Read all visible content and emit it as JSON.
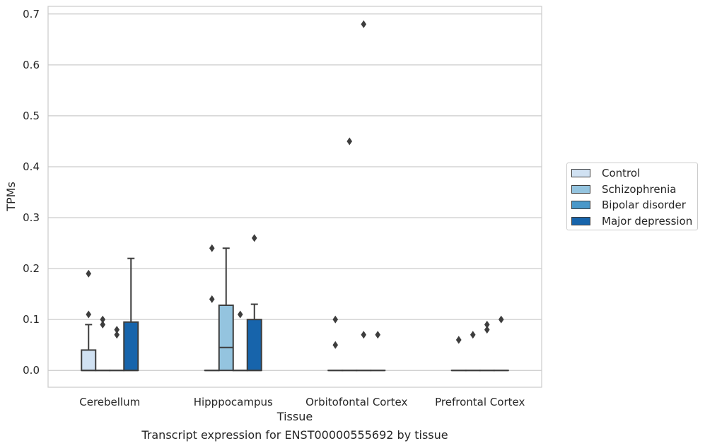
{
  "caption": "Transcript expression for ENST00000555692 by tissue",
  "chart_data": {
    "type": "box",
    "xlabel": "Tissue",
    "ylabel": "TPMs",
    "ylim": [
      -0.033,
      0.715
    ],
    "yticks": [
      0.0,
      0.1,
      0.2,
      0.3,
      0.4,
      0.5,
      0.6,
      0.7
    ],
    "ytick_labels": [
      "0.0",
      "0.1",
      "0.2",
      "0.3",
      "0.4",
      "0.5",
      "0.6",
      "0.7"
    ],
    "grid": true,
    "legend_position": "outside-right",
    "categories": [
      "Cerebellum",
      "Hipppocampus",
      "Orbitofontal Cortex",
      "Prefrontal Cortex"
    ],
    "series": [
      {
        "name": "Control",
        "color": "#d0e1f2",
        "boxes": [
          {
            "q1": 0.0,
            "median": 0.0,
            "q3": 0.04,
            "whisker_low": 0.0,
            "whisker_high": 0.09,
            "outliers": [
              0.11,
              0.19
            ]
          },
          {
            "q1": 0.0,
            "median": 0.0,
            "q3": 0.0,
            "whisker_low": 0.0,
            "whisker_high": 0.0,
            "outliers": [
              0.14,
              0.24
            ]
          },
          {
            "q1": 0.0,
            "median": 0.0,
            "q3": 0.0,
            "whisker_low": 0.0,
            "whisker_high": 0.0,
            "outliers": [
              0.05,
              0.1
            ]
          },
          {
            "q1": 0.0,
            "median": 0.0,
            "q3": 0.0,
            "whisker_low": 0.0,
            "whisker_high": 0.0,
            "outliers": [
              0.06,
              0.06
            ]
          }
        ]
      },
      {
        "name": "Schizophrenia",
        "color": "#94c4df",
        "boxes": [
          {
            "q1": 0.0,
            "median": 0.0,
            "q3": 0.0,
            "whisker_low": 0.0,
            "whisker_high": 0.0,
            "outliers": [
              0.09,
              0.1
            ]
          },
          {
            "q1": 0.0,
            "median": 0.045,
            "q3": 0.128,
            "whisker_low": 0.0,
            "whisker_high": 0.24,
            "outliers": []
          },
          {
            "q1": 0.0,
            "median": 0.0,
            "q3": 0.0,
            "whisker_low": 0.0,
            "whisker_high": 0.0,
            "outliers": [
              0.45
            ]
          },
          {
            "q1": 0.0,
            "median": 0.0,
            "q3": 0.0,
            "whisker_low": 0.0,
            "whisker_high": 0.0,
            "outliers": [
              0.07
            ]
          }
        ]
      },
      {
        "name": "Bipolar disorder",
        "color": "#4a98c9",
        "boxes": [
          {
            "q1": 0.0,
            "median": 0.0,
            "q3": 0.0,
            "whisker_low": 0.0,
            "whisker_high": 0.0,
            "outliers": [
              0.07,
              0.08
            ]
          },
          {
            "q1": 0.0,
            "median": 0.0,
            "q3": 0.0,
            "whisker_low": 0.0,
            "whisker_high": 0.0,
            "outliers": [
              0.11
            ]
          },
          {
            "q1": 0.0,
            "median": 0.0,
            "q3": 0.0,
            "whisker_low": 0.0,
            "whisker_high": 0.0,
            "outliers": [
              0.07,
              0.68
            ]
          },
          {
            "q1": 0.0,
            "median": 0.0,
            "q3": 0.0,
            "whisker_low": 0.0,
            "whisker_high": 0.0,
            "outliers": [
              0.08,
              0.09
            ]
          }
        ]
      },
      {
        "name": "Major depression",
        "color": "#1764ab",
        "boxes": [
          {
            "q1": 0.0,
            "median": 0.0,
            "q3": 0.095,
            "whisker_low": 0.0,
            "whisker_high": 0.22,
            "outliers": []
          },
          {
            "q1": 0.0,
            "median": 0.0,
            "q3": 0.1,
            "whisker_low": 0.0,
            "whisker_high": 0.13,
            "outliers": [
              0.26
            ]
          },
          {
            "q1": 0.0,
            "median": 0.0,
            "q3": 0.0,
            "whisker_low": 0.0,
            "whisker_high": 0.0,
            "outliers": [
              0.07
            ]
          },
          {
            "q1": 0.0,
            "median": 0.0,
            "q3": 0.0,
            "whisker_low": 0.0,
            "whisker_high": 0.0,
            "outliers": [
              0.1
            ]
          }
        ]
      }
    ]
  }
}
